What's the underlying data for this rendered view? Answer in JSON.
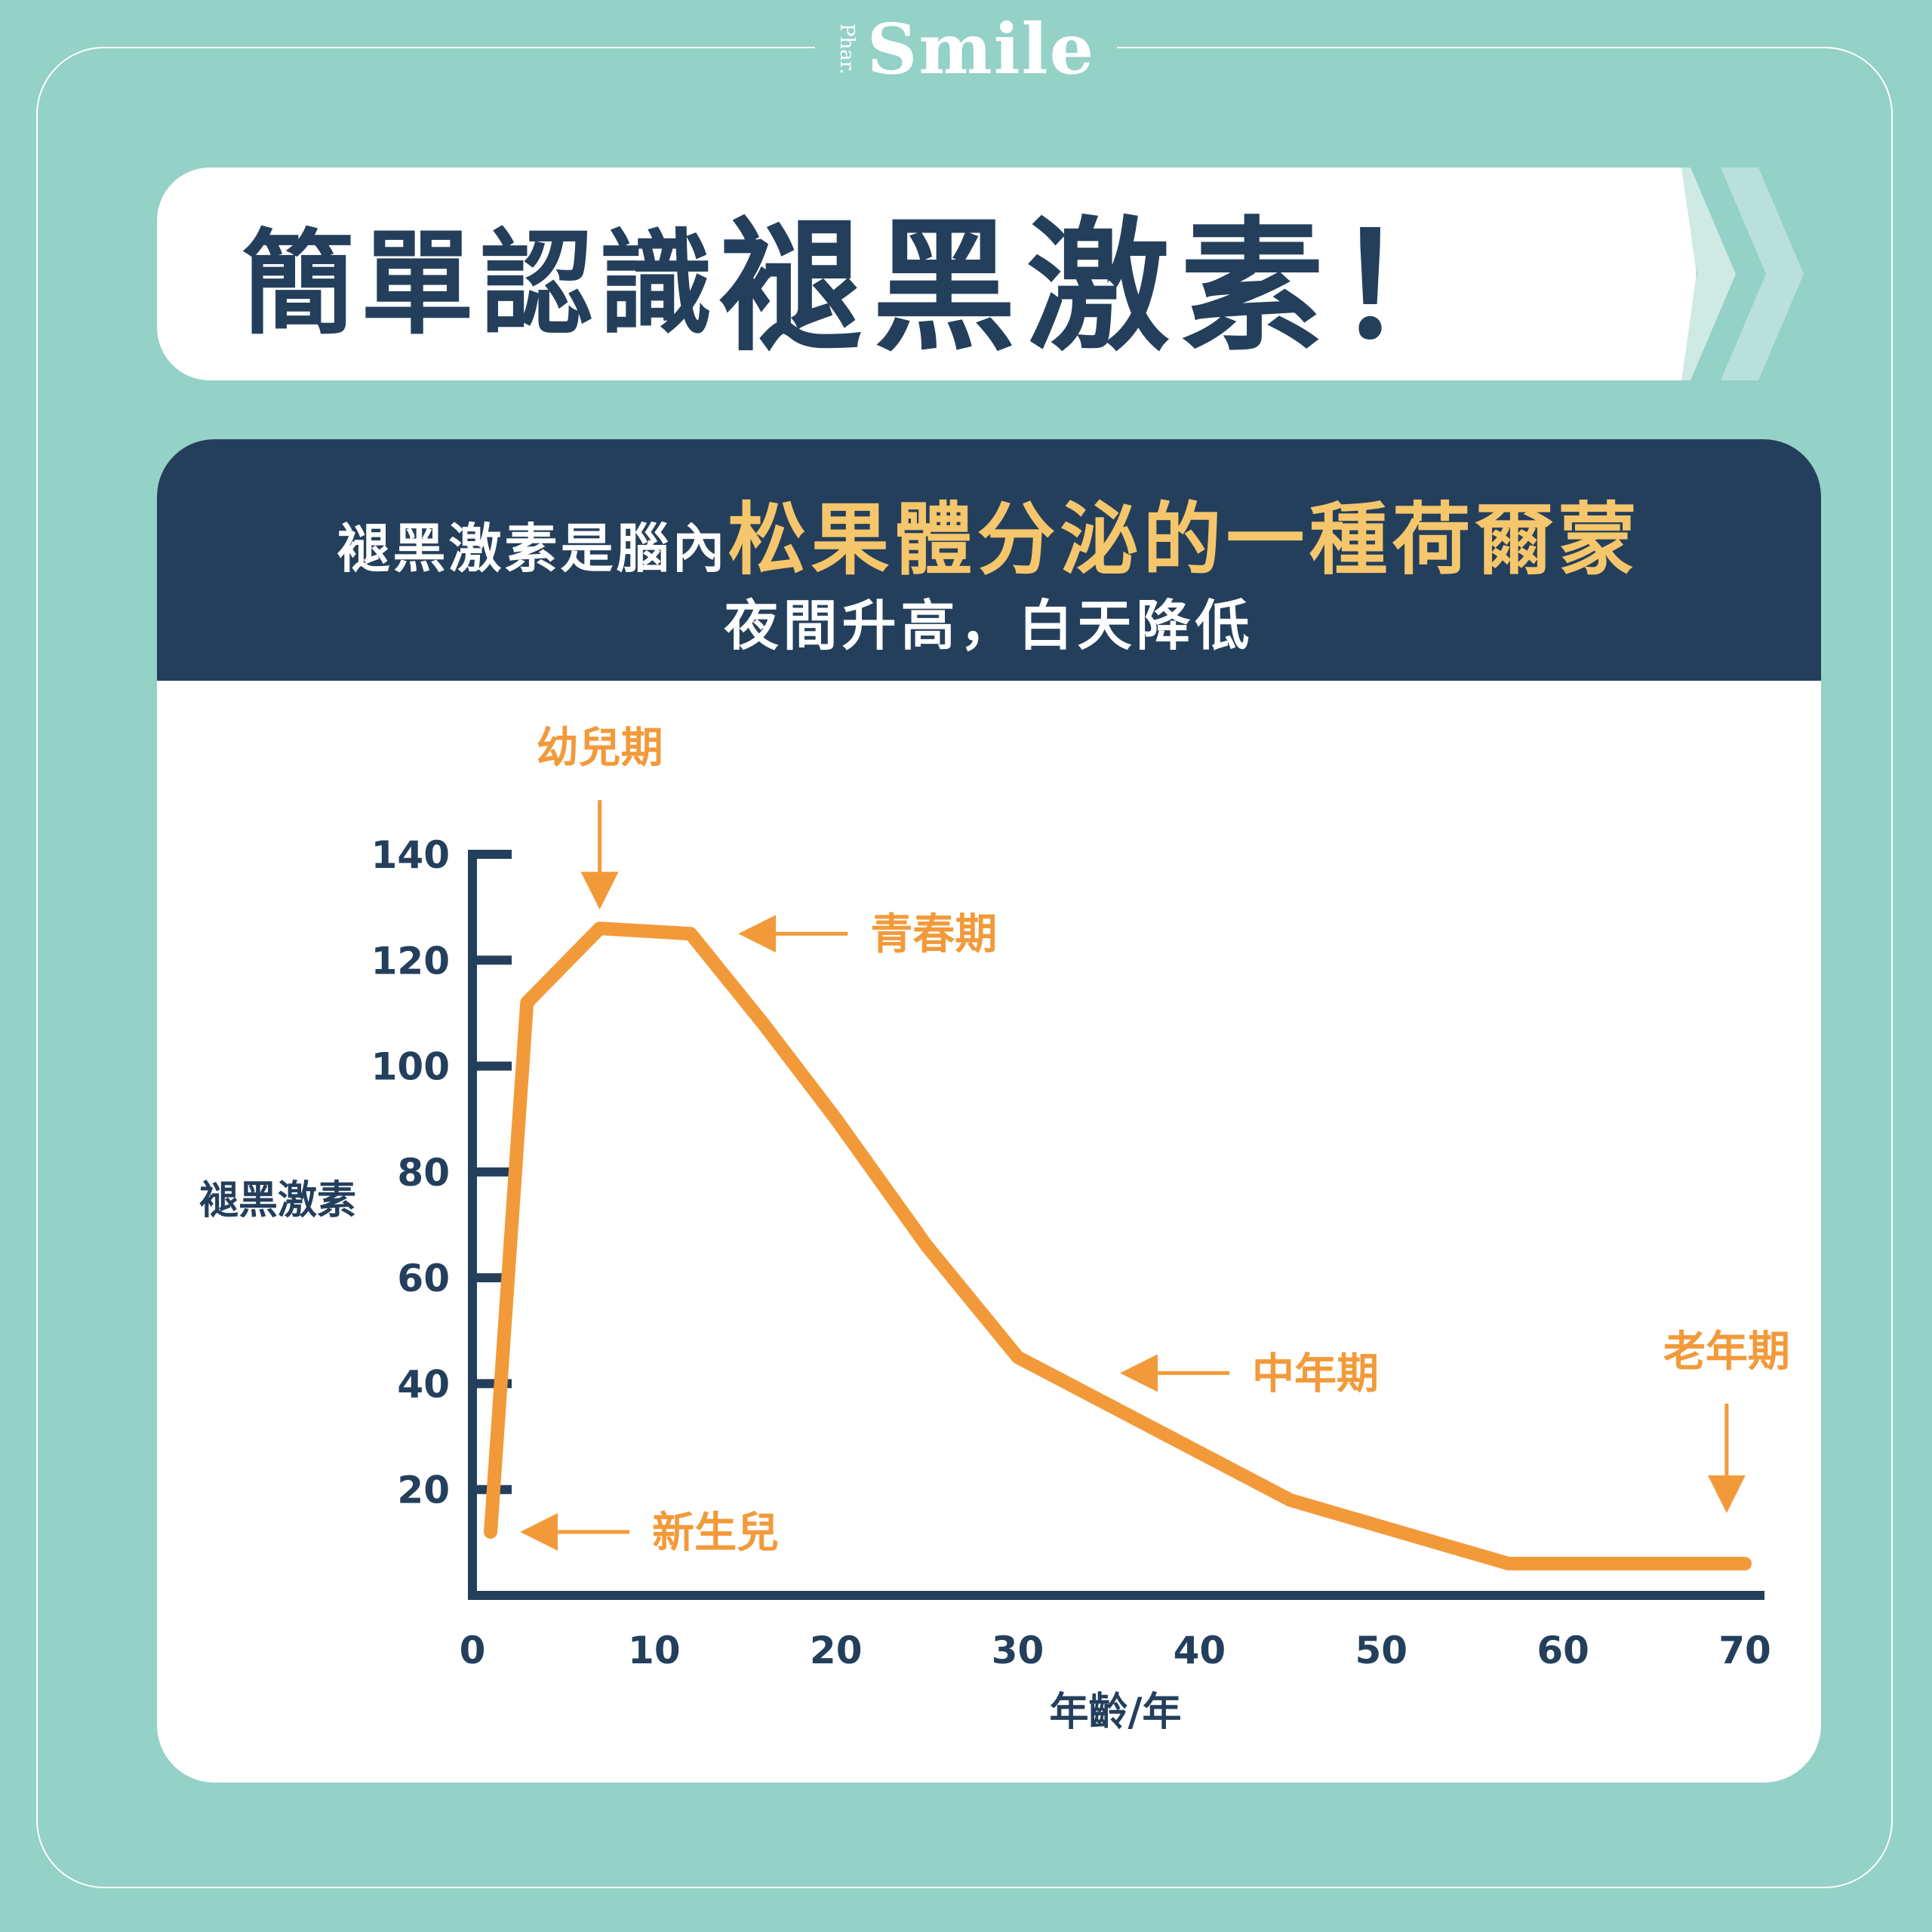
{
  "brand": {
    "prefix": "Phar.",
    "name": "Smile"
  },
  "title": {
    "prefix": "簡單認識",
    "main": "褪黑激素！"
  },
  "header": {
    "line1_prefix": "褪黑激素是腦內",
    "line1_highlight": "松果體分泌的一種荷爾蒙",
    "line2": "夜間升高，白天降低"
  },
  "colors": {
    "background": "#94d1c6",
    "navy": "#243f5c",
    "orange": "#f29a3a",
    "highlight": "#f5c66b"
  },
  "chart_data": {
    "type": "line",
    "title": "",
    "xlabel": "年齡/年",
    "ylabel": "褪黑激素",
    "xlim": [
      0,
      70
    ],
    "ylim": [
      0,
      140
    ],
    "x_ticks": [
      0,
      10,
      20,
      30,
      40,
      50,
      60,
      70
    ],
    "y_ticks": [
      20,
      40,
      60,
      80,
      100,
      120,
      140
    ],
    "series": [
      {
        "x": [
          1,
          3,
          7,
          12,
          16,
          20,
          25,
          30,
          45,
          57,
          70
        ],
        "y": [
          12,
          112,
          126,
          125,
          108,
          90,
          66,
          45,
          18,
          6,
          6
        ]
      }
    ],
    "annotations": [
      {
        "text": "幼兒期",
        "x": 7,
        "y": 126,
        "arrow": "down"
      },
      {
        "text": "青春期",
        "x": 14,
        "y": 125,
        "arrow": "left"
      },
      {
        "text": "中年期",
        "x": 35,
        "y": 42,
        "arrow": "left"
      },
      {
        "text": "老年期",
        "x": 69,
        "y": 12,
        "arrow": "down"
      },
      {
        "text": "新生兒",
        "x": 2,
        "y": 12,
        "arrow": "left"
      }
    ],
    "grid": false,
    "legend": "none"
  }
}
